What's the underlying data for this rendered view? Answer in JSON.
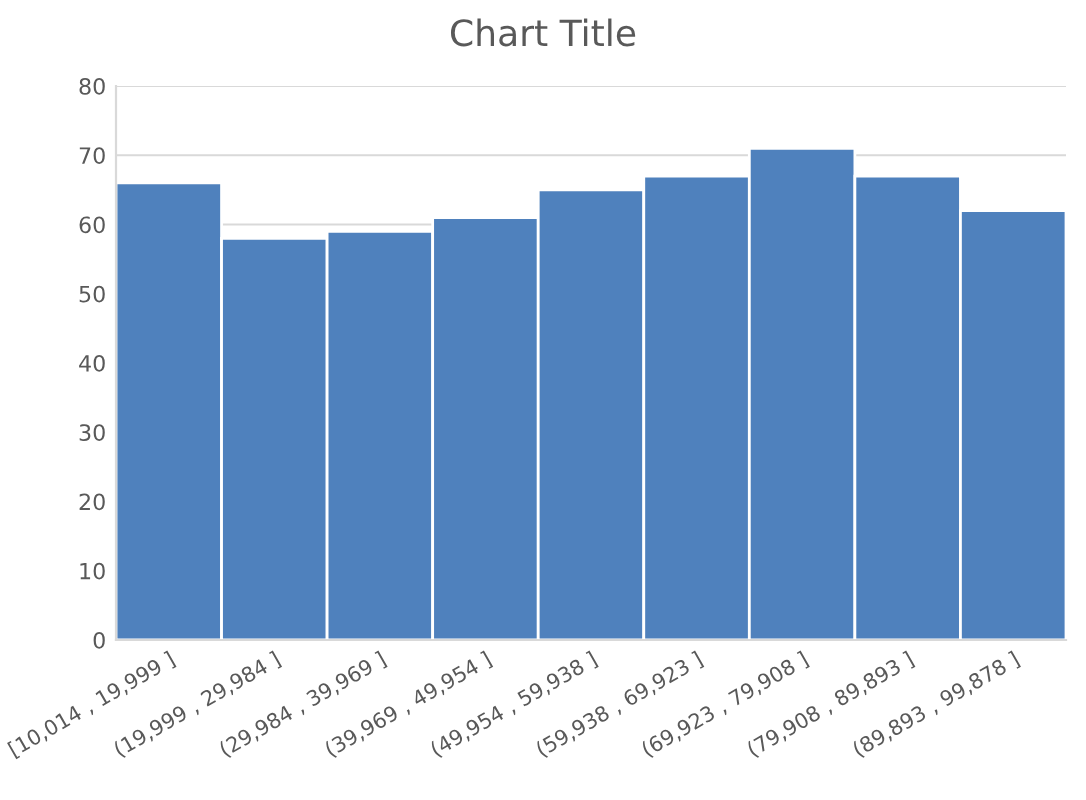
{
  "chart_data": {
    "type": "bar",
    "title": "Chart Title",
    "categories": [
      "[10,014 , 19,999 ]",
      "(19,999 , 29,984 ]",
      "(29,984 , 39,969 ]",
      "(39,969 , 49,954 ]",
      "(49,954 , 59,938 ]",
      "(59,938 , 69,923 ]",
      "(69,923 , 79,908 ]",
      "(79,908 , 89,893 ]",
      "(89,893 , 99,878 ]"
    ],
    "values": [
      66,
      58,
      59,
      61,
      65,
      67,
      71,
      67,
      62
    ],
    "color": "#4f81bd",
    "ylim": [
      0,
      80
    ],
    "yticks": [
      0,
      10,
      20,
      30,
      40,
      50,
      60,
      70,
      80
    ],
    "grid": "y"
  }
}
